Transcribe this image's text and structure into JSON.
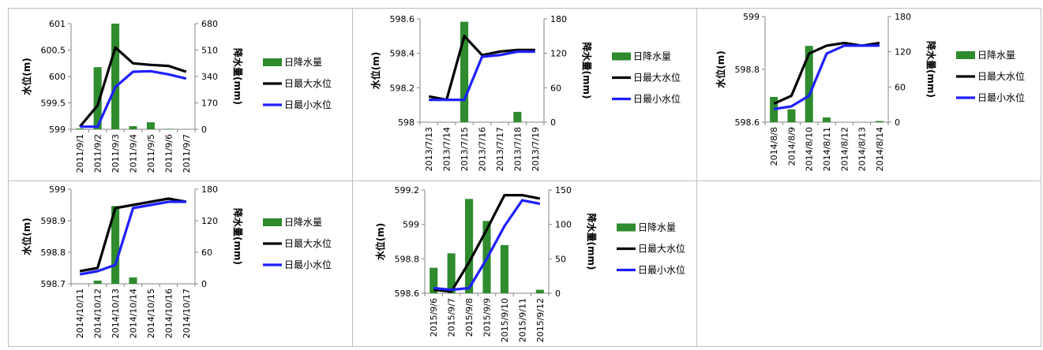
{
  "legend": {
    "rain": "日降水量",
    "max": "日最大水位",
    "min": "日最小水位"
  },
  "colors": {
    "rain": "#2e8b2e",
    "max": "#000000",
    "min": "#1f1fff",
    "border": "#bfbfbf"
  },
  "chart_data": [
    {
      "type": "bar",
      "categories": [
        "2011/9/1",
        "2011/9/2",
        "2011/9/3",
        "2011/9/4",
        "2011/9/5",
        "2011/9/6",
        "2011/9/7"
      ],
      "ylabel": "水位(m)",
      "y2label": "降水量(mm)",
      "ylim": [
        599,
        601
      ],
      "yticks": [
        "599",
        "599.5",
        "600",
        "600.5",
        "601"
      ],
      "y2lim": [
        0,
        680
      ],
      "y2ticks": [
        "0",
        "170",
        "340",
        "510",
        "680"
      ],
      "series": [
        {
          "name": "日降水量",
          "type": "bar",
          "axis": "right",
          "values": [
            5,
            400,
            680,
            20,
            45,
            3,
            0
          ]
        },
        {
          "name": "日最大水位",
          "type": "line",
          "axis": "left",
          "values": [
            599.05,
            599.45,
            600.55,
            600.25,
            600.22,
            600.2,
            600.09
          ]
        },
        {
          "name": "日最小水位",
          "type": "line",
          "axis": "left",
          "values": [
            599.05,
            599.05,
            599.8,
            600.09,
            600.1,
            600.04,
            599.96
          ]
        }
      ]
    },
    {
      "type": "bar",
      "categories": [
        "2013/7/13",
        "2013/7/14",
        "2013/7/15",
        "2013/7/16",
        "2013/7/17",
        "2013/7/18",
        "2013/7/19"
      ],
      "ylabel": "水位(m)",
      "y2label": "降水量(mm)",
      "ylim": [
        598,
        598.6
      ],
      "yticks": [
        "598",
        "598.2",
        "598.4",
        "598.6"
      ],
      "y2lim": [
        0,
        180
      ],
      "y2ticks": [
        "0",
        "60",
        "120",
        "180"
      ],
      "series": [
        {
          "name": "日降水量",
          "type": "bar",
          "axis": "right",
          "values": [
            0,
            0,
            175,
            0,
            0,
            18,
            0
          ]
        },
        {
          "name": "日最大水位",
          "type": "line",
          "axis": "left",
          "values": [
            598.15,
            598.13,
            598.5,
            598.39,
            598.41,
            598.42,
            598.42
          ]
        },
        {
          "name": "日最小水位",
          "type": "line",
          "axis": "left",
          "values": [
            598.13,
            598.13,
            598.13,
            598.38,
            598.39,
            598.41,
            598.41
          ]
        }
      ]
    },
    {
      "type": "bar",
      "categories": [
        "2014/8/8",
        "2014/8/9",
        "2014/8/10",
        "2014/8/11",
        "2014/8/12",
        "2014/8/13",
        "2014/8/14"
      ],
      "ylabel": "水位(m)",
      "y2label": "降水量(mm)",
      "ylim": [
        598.6,
        599
      ],
      "yticks": [
        "598.6",
        "598.8",
        "599"
      ],
      "y2lim": [
        0,
        180
      ],
      "y2ticks": [
        "0",
        "60",
        "120",
        "180"
      ],
      "series": [
        {
          "name": "日降水量",
          "type": "bar",
          "axis": "right",
          "values": [
            43,
            22,
            130,
            8,
            0,
            0,
            2
          ]
        },
        {
          "name": "日最大水位",
          "type": "line",
          "axis": "left",
          "values": [
            598.67,
            598.7,
            598.86,
            598.89,
            598.9,
            598.89,
            598.9
          ]
        },
        {
          "name": "日最小水位",
          "type": "line",
          "axis": "left",
          "values": [
            598.65,
            598.66,
            598.7,
            598.86,
            598.89,
            598.89,
            598.89
          ]
        }
      ]
    },
    {
      "type": "bar",
      "categories": [
        "2014/10/11",
        "2014/10/12",
        "2014/10/13",
        "2014/10/14",
        "2014/10/15",
        "2014/10/16",
        "2014/10/17"
      ],
      "ylabel": "水位(m)",
      "y2label": "降水量(mm)",
      "ylim": [
        598.7,
        599
      ],
      "yticks": [
        "598.7",
        "598.8",
        "598.9",
        "599"
      ],
      "y2lim": [
        0,
        180
      ],
      "y2ticks": [
        "0",
        "60",
        "120",
        "180"
      ],
      "series": [
        {
          "name": "日降水量",
          "type": "bar",
          "axis": "right",
          "values": [
            0,
            6,
            148,
            12,
            0,
            0,
            0
          ]
        },
        {
          "name": "日最大水位",
          "type": "line",
          "axis": "left",
          "values": [
            598.74,
            598.75,
            598.94,
            598.95,
            598.96,
            598.97,
            598.96
          ]
        },
        {
          "name": "日最小水位",
          "type": "line",
          "axis": "left",
          "values": [
            598.73,
            598.74,
            598.76,
            598.94,
            598.95,
            598.96,
            598.96
          ]
        }
      ]
    },
    {
      "type": "bar",
      "categories": [
        "2015/9/6",
        "2015/9/7",
        "2015/9/8",
        "2015/9/9",
        "2015/9/10",
        "2015/9/11",
        "2015/9/12"
      ],
      "ylabel": "水位(m)",
      "y2label": "降水量(mm)",
      "ylim": [
        598.6,
        599.2
      ],
      "yticks": [
        "598.6",
        "598.8",
        "599",
        "599.2"
      ],
      "y2lim": [
        0,
        150
      ],
      "y2ticks": [
        "0",
        "50",
        "100",
        "150"
      ],
      "series": [
        {
          "name": "日降水量",
          "type": "bar",
          "axis": "right",
          "values": [
            37,
            58,
            137,
            105,
            70,
            0,
            5
          ]
        },
        {
          "name": "日最大水位",
          "type": "line",
          "axis": "left",
          "values": [
            598.62,
            598.61,
            598.78,
            598.97,
            599.17,
            599.17,
            599.15
          ]
        },
        {
          "name": "日最小水位",
          "type": "line",
          "axis": "left",
          "values": [
            598.63,
            598.62,
            598.63,
            598.8,
            598.99,
            599.14,
            599.12
          ]
        }
      ]
    }
  ]
}
